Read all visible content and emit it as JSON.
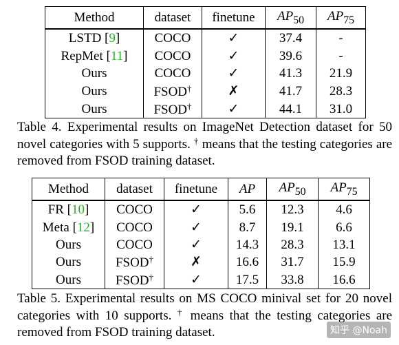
{
  "table4": {
    "headers": [
      "Method",
      "dataset",
      "finetune",
      "AP",
      "50",
      "AP",
      "75"
    ],
    "rows": [
      {
        "method": "LSTD",
        "cite": "9",
        "dataset": "COCO",
        "dagger": "",
        "finetune": "✓",
        "ap50": "37.4",
        "ap75": "-"
      },
      {
        "method": "RepMet",
        "cite": "11",
        "dataset": "COCO",
        "dagger": "",
        "finetune": "✓",
        "ap50": "39.6",
        "ap75": "-"
      },
      {
        "method": "Ours",
        "cite": "",
        "dataset": "COCO",
        "dagger": "",
        "finetune": "✓",
        "ap50": "41.3",
        "ap75": "21.9"
      },
      {
        "method": "Ours",
        "cite": "",
        "dataset": "FSOD",
        "dagger": "†",
        "finetune": "✗",
        "ap50": "41.7",
        "ap75": "28.3"
      },
      {
        "method": "Ours",
        "cite": "",
        "dataset": "FSOD",
        "dagger": "†",
        "finetune": "✓",
        "ap50": "44.1",
        "ap75": "31.0"
      }
    ],
    "caption": {
      "prefix": "Table 4. Experimental results on ImageNet Detection dataset for 50 novel categories with 5 supports.",
      "dagger": "†",
      "suffix": "means that the testing categories are removed from FSOD training dataset."
    }
  },
  "table5": {
    "headers": [
      "Method",
      "dataset",
      "finetune",
      "AP",
      "AP",
      "50",
      "AP",
      "75"
    ],
    "rows": [
      {
        "method": "FR",
        "cite": "10",
        "dataset": "COCO",
        "dagger": "",
        "finetune": "✓",
        "ap": "5.6",
        "ap50": "12.3",
        "ap75": "4.6"
      },
      {
        "method": "Meta",
        "cite": "12",
        "dataset": "COCO",
        "dagger": "",
        "finetune": "✓",
        "ap": "8.7",
        "ap50": "19.1",
        "ap75": "6.6"
      },
      {
        "method": "Ours",
        "cite": "",
        "dataset": "COCO",
        "dagger": "",
        "finetune": "✓",
        "ap": "14.3",
        "ap50": "28.3",
        "ap75": "13.1"
      },
      {
        "method": "Ours",
        "cite": "",
        "dataset": "FSOD",
        "dagger": "†",
        "finetune": "✗",
        "ap": "16.6",
        "ap50": "31.7",
        "ap75": "15.9"
      },
      {
        "method": "Ours",
        "cite": "",
        "dataset": "FSOD",
        "dagger": "†",
        "finetune": "✓",
        "ap": "17.5",
        "ap50": "33.8",
        "ap75": "16.6"
      }
    ],
    "caption": {
      "prefix": "Table 5. Experimental results on MS COCO minival set for 20 novel categories with 10 supports.",
      "dagger": "†",
      "suffix": "means that the testing categories are removed from FSOD training dataset."
    }
  },
  "watermark": "知乎 @Noah"
}
